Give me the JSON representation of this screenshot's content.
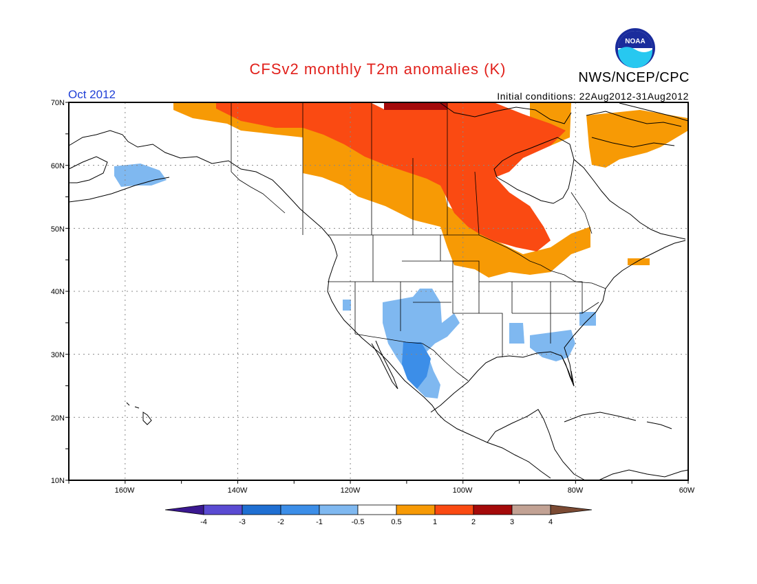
{
  "header": {
    "title": "CFSv2 monthly T2m anomalies (K)",
    "agency": "NWS/NCEP/CPC",
    "valid_month": "Oct 2012",
    "initial_conditions": "Initial conditions: 22Aug2012-31Aug2012",
    "logo_text": "NOAA"
  },
  "colors": {
    "title": "#e1201b",
    "month": "#1f3fd6",
    "bins": [
      "#3a1890",
      "#5a4bd2",
      "#1f6fd2",
      "#3c8ee8",
      "#7fb8f0",
      "#ffffff",
      "#f79a05",
      "#fa4a12",
      "#a40a0a",
      "#c2a294",
      "#7b4a33"
    ]
  },
  "map": {
    "lat_ticks": [
      "70N",
      "60N",
      "50N",
      "40N",
      "30N",
      "20N",
      "10N"
    ],
    "lon_ticks": [
      "160W",
      "140W",
      "120W",
      "100W",
      "80W",
      "60W"
    ]
  },
  "colorbar": {
    "labels": [
      "-4",
      "-3",
      "-2",
      "-1",
      "-0.5",
      "0.5",
      "1",
      "2",
      "3",
      "4"
    ]
  }
}
